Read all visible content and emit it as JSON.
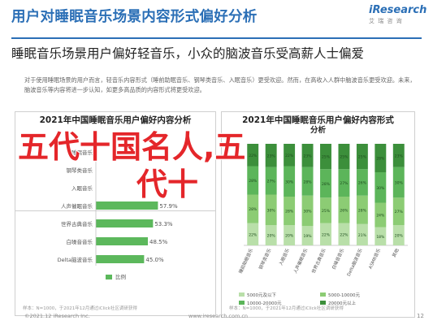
{
  "header": {
    "title": "用户对睡眠音乐场景内容形式偏好分析",
    "logo_brand": "iResearch",
    "logo_sub": "艾 瑞 咨 询"
  },
  "subtitle": "睡眠音乐场景用户偏好轻音乐，小众的脑波音乐受高薪人士偏爱",
  "paragraph": "对于使用睡眠场景的用户而言，轻音乐内容形式（睡前助眠音乐、钢琴类音乐、入眠音乐）更受欢迎。然而，在高收入人群中脑波音乐更受欢迎。未来，脑波音乐等内容将进一步认知，如更多高品质的内容形式将更受欢迎。",
  "overlay": {
    "line1": "五代十国名人,五",
    "line2": "代十"
  },
  "left_chart": {
    "title": "2021年中国睡眠音乐用户偏好内容分析",
    "source": "样本：N=1000，于2021年12月通过iClick社区调研获得",
    "legend": "比例"
  },
  "right_chart": {
    "title": "2021年中国睡眠音乐用户偏好内容形式",
    "title_line2": "分析",
    "source": "样本：N=1000，于2021年12月通过iClick社区调研获得",
    "legend": [
      "5000元及以下",
      "5000-10000元",
      "10000-20000元",
      "20000元以上"
    ]
  },
  "chart_data": [
    {
      "type": "bar",
      "orientation": "horizontal",
      "title": "2021年中国睡眠音乐用户偏好内容分析",
      "categories": [
        "睡眠音乐",
        "钢琴类音乐",
        "入眠音乐",
        "人声催眠音乐",
        "世界古典音乐",
        "白噪音音乐",
        "Delta脑波音乐"
      ],
      "series": [
        {
          "name": "比例",
          "values": [
            null,
            null,
            null,
            57.9,
            53.3,
            48.5,
            45.0
          ]
        }
      ],
      "xlim": [
        0,
        100
      ],
      "legend_position": "bottom"
    },
    {
      "type": "bar",
      "stacked": true,
      "title": "2021年中国睡眠音乐用户偏好内容形式分析",
      "categories": [
        "睡前助眠音乐",
        "钢琴类音乐",
        "入眠音乐",
        "人声催眠音乐",
        "世界古典音乐",
        "白噪音音乐",
        "Delta脑波音乐",
        "ASMR音乐",
        "其他"
      ],
      "series": [
        {
          "name": "5000元及以下",
          "values": [
            22,
            20,
            20,
            19,
            22,
            22,
            21,
            18,
            20
          ]
        },
        {
          "name": "5000-10000元",
          "values": [
            28,
            30,
            28,
            30,
            25,
            26,
            28,
            24,
            27
          ]
        },
        {
          "name": "10000-20000元",
          "values": [
            28,
            27,
            30,
            28,
            28,
            27,
            26,
            30,
            30
          ]
        },
        {
          "name": "20000元以上",
          "values": [
            22,
            23,
            22,
            23,
            25,
            25,
            25,
            28,
            23
          ]
        }
      ],
      "ylim": [
        0,
        100
      ],
      "legend_position": "bottom"
    }
  ],
  "colors": {
    "title_blue": "#2b6fb6",
    "bar_green": "#5cb85c",
    "overlay_red": "#e4262a",
    "stack": [
      "#b9dfa9",
      "#8ccc74",
      "#5cb55a",
      "#3c8f3b"
    ]
  },
  "footer": {
    "left": "©2021.12 iResearch Inc.",
    "middle": "www.iresearch.com.cn",
    "page": "12"
  }
}
